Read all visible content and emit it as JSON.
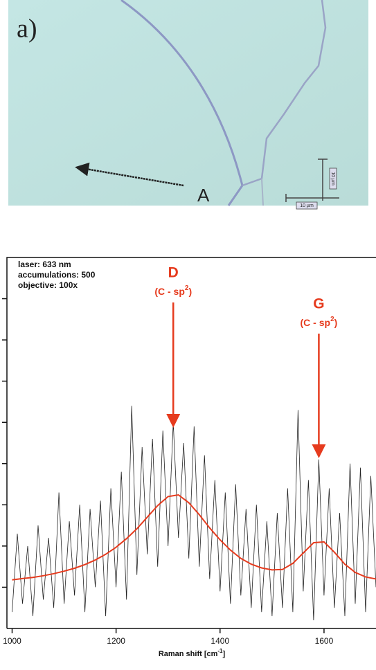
{
  "micrograph": {
    "panel_label": "a)",
    "marker": "A",
    "scale_bars": [
      "10 µm",
      "10 µm"
    ]
  },
  "chart_data": {
    "type": "line",
    "annotations_text": [
      "laser: 633 nm",
      "accumulations: 500",
      "objective: 100x"
    ],
    "peaks": [
      {
        "label": "D",
        "note": [
          "(C - sp",
          "2",
          ")"
        ],
        "x": 1310
      },
      {
        "label": "G",
        "note": [
          "(C - sp",
          "2",
          ")"
        ],
        "x": 1590
      }
    ],
    "x_label": [
      "Raman shift  [cm",
      "-1",
      "]"
    ],
    "xlim": [
      990,
      1700
    ],
    "xticks": [
      1000,
      1200,
      1400,
      1600
    ],
    "ylim": [
      0,
      9
    ],
    "yticks": [
      1,
      2,
      3,
      4,
      5,
      6,
      7,
      8
    ],
    "series": [
      {
        "color": "#222222",
        "x": [
          1000,
          1010,
          1020,
          1030,
          1040,
          1050,
          1060,
          1070,
          1080,
          1090,
          1100,
          1110,
          1120,
          1130,
          1140,
          1150,
          1160,
          1170,
          1180,
          1190,
          1200,
          1210,
          1220,
          1230,
          1240,
          1250,
          1260,
          1270,
          1280,
          1290,
          1300,
          1310,
          1320,
          1330,
          1340,
          1350,
          1360,
          1370,
          1380,
          1390,
          1400,
          1410,
          1420,
          1430,
          1440,
          1450,
          1460,
          1470,
          1480,
          1490,
          1500,
          1510,
          1520,
          1530,
          1540,
          1550,
          1560,
          1570,
          1580,
          1590,
          1600,
          1610,
          1620,
          1630,
          1640,
          1650,
          1660,
          1670,
          1680,
          1690,
          1700
        ],
        "values": [
          0.4,
          2.3,
          0.6,
          2.0,
          0.3,
          2.5,
          0.7,
          2.2,
          0.5,
          3.3,
          0.6,
          2.6,
          0.8,
          3.0,
          0.4,
          2.9,
          1.0,
          3.1,
          0.3,
          3.4,
          1.0,
          3.8,
          0.7,
          5.4,
          1.3,
          4.4,
          1.8,
          4.6,
          1.5,
          4.8,
          2.0,
          5.0,
          2.2,
          4.5,
          1.7,
          4.9,
          1.5,
          4.2,
          1.2,
          3.6,
          0.9,
          3.3,
          0.6,
          3.5,
          0.8,
          2.9,
          0.5,
          3.0,
          0.4,
          2.6,
          0.3,
          2.8,
          0.5,
          3.4,
          0.4,
          5.3,
          0.9,
          3.6,
          0.2,
          4.1,
          0.8,
          3.4,
          0.5,
          2.8,
          0.3,
          4.0,
          0.6,
          3.9,
          0.4,
          3.7,
          1.0
        ]
      },
      {
        "color": "#e63b1e",
        "x": [
          1000,
          1020,
          1040,
          1060,
          1080,
          1100,
          1120,
          1140,
          1160,
          1180,
          1200,
          1220,
          1240,
          1260,
          1280,
          1300,
          1320,
          1340,
          1360,
          1380,
          1400,
          1420,
          1440,
          1460,
          1480,
          1500,
          1520,
          1540,
          1560,
          1580,
          1600,
          1620,
          1640,
          1660,
          1680,
          1700
        ],
        "values": [
          1.18,
          1.21,
          1.24,
          1.28,
          1.33,
          1.39,
          1.46,
          1.55,
          1.66,
          1.8,
          1.97,
          2.18,
          2.42,
          2.7,
          2.98,
          3.2,
          3.24,
          3.05,
          2.76,
          2.44,
          2.15,
          1.9,
          1.7,
          1.56,
          1.47,
          1.42,
          1.43,
          1.58,
          1.83,
          2.08,
          2.1,
          1.85,
          1.56,
          1.36,
          1.25,
          1.2
        ]
      }
    ]
  }
}
